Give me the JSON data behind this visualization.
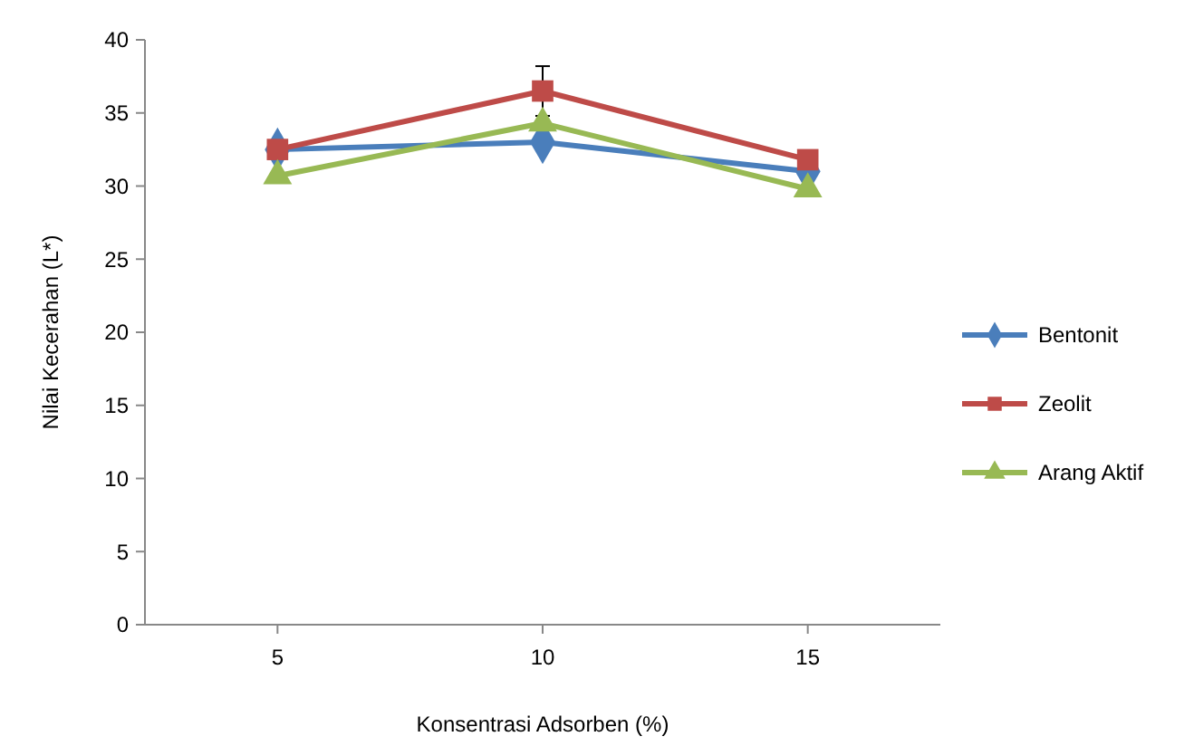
{
  "chart_data": {
    "type": "line",
    "xlabel": "Konsentrasi Adsorben (%)",
    "ylabel": "Nilai Kecerahan (L*)",
    "categories": [
      "5",
      "10",
      "15"
    ],
    "ylim": [
      0,
      40
    ],
    "yticks": [
      0,
      5,
      10,
      15,
      20,
      25,
      30,
      35,
      40
    ],
    "legend": "right",
    "grid": false,
    "series": [
      {
        "name": "Bentonit",
        "color": "#4a7ebb",
        "marker": "diamond",
        "values": [
          32.5,
          33,
          31
        ]
      },
      {
        "name": "Zeolit",
        "color": "#be4b48",
        "marker": "square",
        "values": [
          32.5,
          36.5,
          31.8
        ],
        "errors": [
          null,
          1.7,
          null
        ]
      },
      {
        "name": "Arang Aktif",
        "color": "#98b954",
        "marker": "triangle",
        "values": [
          30.7,
          34.3,
          29.8
        ]
      }
    ]
  }
}
